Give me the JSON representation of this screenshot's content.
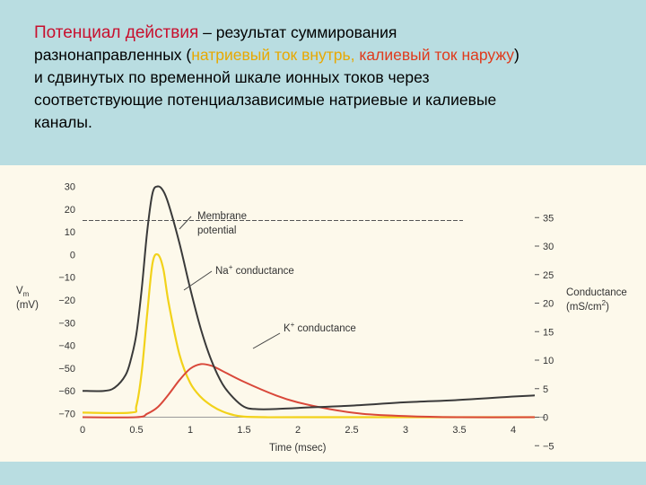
{
  "slide": {
    "title_term": "Потенциал действия",
    "p1": " – результат суммирования",
    "p2": "разнонаправленных (",
    "sodium": "натриевый ток внутрь, ",
    "potassium": "калиевый ток наружу",
    "p3": ")",
    "p4": "и сдвинутых по временной шкале ионных токов через",
    "p5": "соответствующие потенциалзависимые натриевые и калиевые",
    "p6": "каналы."
  },
  "colors": {
    "background": "#b9dde1",
    "plot_background": "#fdf9eb",
    "membrane": "#3a3a3a",
    "sodium": "#f2d21a",
    "potassium": "#d9483a",
    "text_red": "#c8102e",
    "text_orange": "#e8a800"
  },
  "chart_data": {
    "type": "line",
    "xlabel": "Time (msec)",
    "ylabel_left": [
      "V",
      "m",
      "(mV)"
    ],
    "ylabel_right": [
      "Conductance",
      "(mS/cm",
      "2",
      ")"
    ],
    "xlim": [
      0,
      4.3
    ],
    "ylim_left": [
      -70,
      30
    ],
    "ylim_right": [
      -5,
      35
    ],
    "x_ticks": [
      "0",
      "0.5",
      "1",
      "1.5",
      "2",
      "2.5",
      "3",
      "3.5",
      "4"
    ],
    "y_left_ticks": [
      "30",
      "20",
      "10",
      "0",
      "−10",
      "−20",
      "−30",
      "−40",
      "−50",
      "−60",
      "−70"
    ],
    "y_right_ticks": [
      "35",
      "30",
      "25",
      "20",
      "15",
      "10",
      "5",
      "0",
      "−5"
    ],
    "reference_line_mV": 15,
    "annotations": {
      "membrane": [
        "Membrane",
        "potential"
      ],
      "sodium": [
        "Na",
        "+",
        " conductance"
      ],
      "potassium": [
        "K",
        "+",
        " conductance"
      ]
    },
    "series": [
      {
        "name": "Membrane potential",
        "axis": "left",
        "x": [
          0,
          0.2,
          0.3,
          0.4,
          0.45,
          0.5,
          0.55,
          0.6,
          0.65,
          0.7,
          0.75,
          0.8,
          0.9,
          1.0,
          1.1,
          1.2,
          1.3,
          1.4,
          1.5,
          1.6,
          1.8,
          2.0,
          2.5,
          3.0,
          3.5,
          4.0,
          4.2
        ],
        "y": [
          -60,
          -60,
          -58.5,
          -53,
          -46,
          -35,
          -15,
          10,
          27,
          30,
          28,
          22,
          5,
          -15,
          -33,
          -47,
          -57,
          -63,
          -67,
          -68,
          -68,
          -67.5,
          -66.5,
          -65,
          -64,
          -62.5,
          -62
        ]
      },
      {
        "name": "Na+ conductance",
        "axis": "right",
        "x": [
          0,
          0.45,
          0.5,
          0.55,
          0.6,
          0.65,
          0.7,
          0.75,
          0.8,
          0.9,
          1.0,
          1.1,
          1.2,
          1.3,
          1.4,
          1.5,
          1.7,
          2.0,
          4.2
        ],
        "y": [
          0.8,
          0.8,
          2,
          8,
          18,
          27,
          28.5,
          26,
          20,
          11,
          6,
          3.5,
          2,
          1,
          0.4,
          0.1,
          0,
          0,
          0
        ]
      },
      {
        "name": "K+ conductance",
        "axis": "right",
        "x": [
          0,
          0.5,
          0.6,
          0.7,
          0.8,
          0.9,
          1.0,
          1.1,
          1.2,
          1.3,
          1.5,
          1.8,
          2.0,
          2.3,
          2.6,
          3.0,
          3.5,
          4.2
        ],
        "y": [
          0,
          0,
          0.6,
          1.8,
          4,
          6.5,
          8.5,
          9.3,
          9,
          8.1,
          6.2,
          3.8,
          2.6,
          1.4,
          0.6,
          0.2,
          0,
          0
        ]
      }
    ]
  }
}
